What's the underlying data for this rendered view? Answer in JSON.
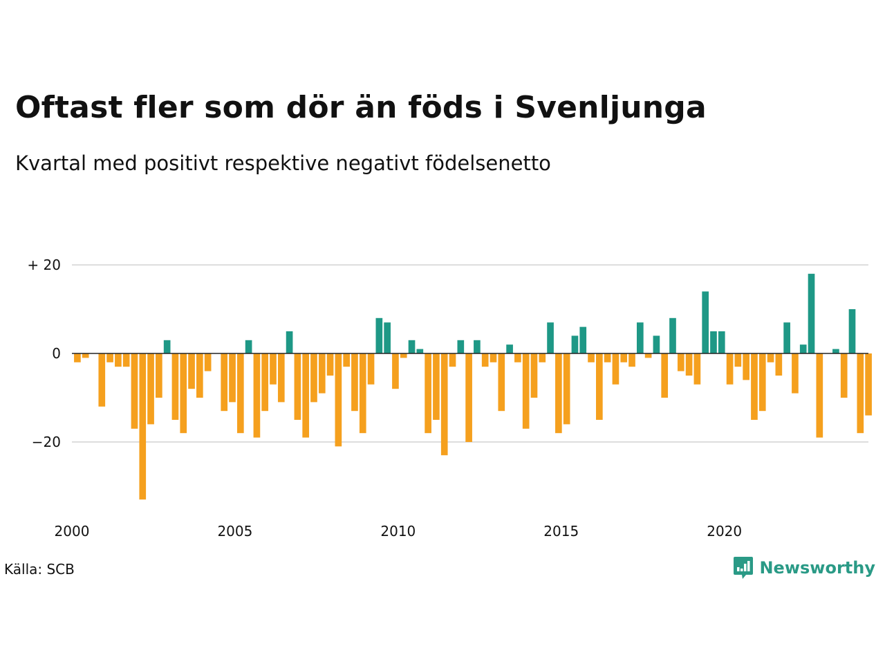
{
  "title": "Oftast fler som dör än föds i Svenljunga",
  "subtitle": "Kvartal med positivt respektive negativt födelsenetto",
  "source": "Källa: SCB",
  "brand": {
    "name": "Newsworthy",
    "icon": "newsworthy-logo-icon"
  },
  "colors": {
    "positive": "#1e9886",
    "negative": "#f5a01e",
    "grid": "#dddddd",
    "zero_line": "#222222",
    "brand": "#2a9a86"
  },
  "chart_data": {
    "type": "bar",
    "title": "Oftast fler som dör än föds i Svenljunga",
    "subtitle": "Kvartal med positivt respektive negativt födelsenetto",
    "xlabel": "",
    "ylabel": "",
    "ylim": [
      -34,
      21
    ],
    "xlim": [
      2000.0,
      2024.5
    ],
    "grid": true,
    "legend": "none",
    "y_ticks": [
      {
        "value": 20,
        "label": "+ 20"
      },
      {
        "value": 0,
        "label": "0"
      },
      {
        "value": -20,
        "label": "−20"
      }
    ],
    "x_ticks": [
      {
        "value": 2000,
        "label": "2000"
      },
      {
        "value": 2005,
        "label": "2005"
      },
      {
        "value": 2010,
        "label": "2010"
      },
      {
        "value": 2015,
        "label": "2015"
      },
      {
        "value": 2020,
        "label": "2020"
      }
    ],
    "quarters": [
      "2000 K1",
      "2000 K2",
      "2000 K3",
      "2000 K4",
      "2001 K1",
      "2001 K2",
      "2001 K3",
      "2001 K4",
      "2002 K1",
      "2002 K2",
      "2002 K3",
      "2002 K4",
      "2003 K1",
      "2003 K2",
      "2003 K3",
      "2003 K4",
      "2004 K1",
      "2004 K2",
      "2004 K3",
      "2004 K4",
      "2005 K1",
      "2005 K2",
      "2005 K3",
      "2005 K4",
      "2006 K1",
      "2006 K2",
      "2006 K3",
      "2006 K4",
      "2007 K1",
      "2007 K2",
      "2007 K3",
      "2007 K4",
      "2008 K1",
      "2008 K2",
      "2008 K3",
      "2008 K4",
      "2009 K1",
      "2009 K2",
      "2009 K3",
      "2009 K4",
      "2010 K1",
      "2010 K2",
      "2010 K3",
      "2010 K4",
      "2011 K1",
      "2011 K2",
      "2011 K3",
      "2011 K4",
      "2012 K1",
      "2012 K2",
      "2012 K3",
      "2012 K4",
      "2013 K1",
      "2013 K2",
      "2013 K3",
      "2013 K4",
      "2014 K1",
      "2014 K2",
      "2014 K3",
      "2014 K4",
      "2015 K1",
      "2015 K2",
      "2015 K3",
      "2015 K4",
      "2016 K1",
      "2016 K2",
      "2016 K3",
      "2016 K4",
      "2017 K1",
      "2017 K2",
      "2017 K3",
      "2017 K4",
      "2018 K1",
      "2018 K2",
      "2018 K3",
      "2018 K4",
      "2019 K1",
      "2019 K2",
      "2019 K3",
      "2019 K4",
      "2020 K1",
      "2020 K2",
      "2020 K3",
      "2020 K4",
      "2021 K1",
      "2021 K2",
      "2021 K3",
      "2021 K4",
      "2022 K1",
      "2022 K2",
      "2022 K3",
      "2022 K4",
      "2023 K1",
      "2023 K2",
      "2023 K3",
      "2023 K4",
      "2024 K1",
      "2024 K2"
    ],
    "values": [
      -2,
      -1,
      0,
      -12,
      -2,
      -3,
      -3,
      -17,
      -33,
      -16,
      -10,
      3,
      -15,
      -18,
      -8,
      -10,
      -4,
      0,
      -13,
      -11,
      -18,
      3,
      -19,
      -13,
      -7,
      -11,
      5,
      -15,
      -19,
      -11,
      -9,
      -5,
      -21,
      -3,
      -13,
      -18,
      -7,
      8,
      7,
      -8,
      -1,
      3,
      1,
      -18,
      -15,
      -23,
      -3,
      3,
      -20,
      3,
      -3,
      -2,
      -13,
      2,
      -2,
      -17,
      -10,
      -2,
      7,
      -18,
      -16,
      4,
      6,
      -2,
      -15,
      -2,
      -7,
      -2,
      -3,
      7,
      -1,
      4,
      -10,
      8,
      -4,
      -5,
      -7,
      14,
      5,
      5,
      -7,
      -3,
      -6,
      -15,
      -13,
      -2,
      -5,
      7,
      -9,
      2,
      18,
      -19,
      0,
      1,
      -10,
      10,
      -18,
      -14
    ]
  }
}
